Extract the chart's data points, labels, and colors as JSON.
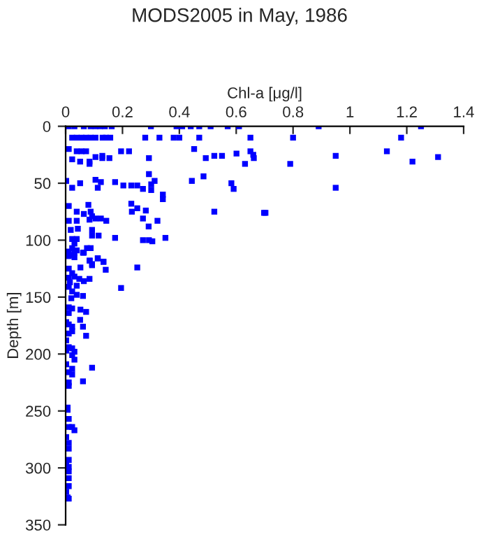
{
  "chart_data": {
    "type": "scatter",
    "title": "MODS2005 in May, 1986",
    "xlabel": "Chl-a [μg/l]",
    "ylabel": "Depth [m]",
    "xlim": [
      0,
      1.4
    ],
    "xticks": [
      0,
      0.2,
      0.4,
      0.6,
      0.8,
      1,
      1.2,
      1.4
    ],
    "ylim": [
      350,
      0
    ],
    "yticks": [
      0,
      50,
      100,
      150,
      200,
      250,
      300,
      350
    ],
    "grid": false,
    "legend": false,
    "marker": "square",
    "series": [
      {
        "color": "#0000ff",
        "x": [
          0.011,
          0.031,
          0.064,
          0.088,
          0.105,
          0.121,
          0.138,
          0.162,
          0.3,
          0.39,
          0.41,
          0.44,
          0.47,
          0.51,
          0.57,
          0.61,
          0.89,
          1.25,
          0.023,
          0.039,
          0.056,
          0.072,
          0.088,
          0.105,
          0.13,
          0.142,
          0.157,
          0.28,
          0.33,
          0.38,
          0.4,
          0.47,
          0.65,
          0.8,
          1.18,
          0.011,
          0.039,
          0.056,
          0.072,
          0.195,
          0.223,
          0.452,
          0.65,
          1.13,
          0.66,
          0.95,
          1.31,
          1.22,
          0.79,
          0.023,
          0.051,
          0.084,
          0.084,
          0.105,
          0.129,
          0.129,
          0.154,
          0.293,
          0.493,
          0.523,
          0.55,
          0.631,
          0.662,
          0.601,
          0.293,
          0.313,
          0.485,
          0.444,
          0.583,
          0.591,
          0.95,
          0.703,
          0.002,
          0.023,
          0.051,
          0.105,
          0.113,
          0.124,
          0.174,
          0.203,
          0.231,
          0.252,
          0.272,
          0.301,
          0.301,
          0.342,
          0.342,
          0.011,
          0.08,
          0.039,
          0.064,
          0.088,
          0.093,
          0.084,
          0.105,
          0.124,
          0.143,
          0.231,
          0.252,
          0.233,
          0.282,
          0.272,
          0.323,
          0.292,
          0.523,
          0.698,
          0.011,
          0.039,
          0.018,
          0.043,
          0.093,
          0.093,
          0.116,
          0.174,
          0.272,
          0.293,
          0.305,
          0.351,
          0.023,
          0.039,
          0.031,
          0.023,
          0.011,
          0.039,
          0.064,
          0.075,
          0.088,
          0.031,
          0.011,
          0.085,
          0.113,
          0.133,
          0.093,
          0.015,
          0.031,
          0.061,
          0.084,
          0.113,
          0.133,
          0.093,
          0.011,
          0.052,
          0.141,
          0.252,
          0.023,
          0.011,
          0.031,
          0.048,
          0.064,
          0.084,
          0.015,
          0.039,
          0.011,
          0.195,
          0.023,
          0.039,
          0.061,
          0.02,
          0.011,
          0.023,
          0.052,
          0.072,
          0.011,
          0.002,
          0.051,
          0.011,
          0.023,
          0.061,
          0.023,
          0.011,
          0.072,
          0.002,
          0.011,
          0.023,
          0.002,
          0.031,
          0.023,
          0.031,
          0.002,
          0.023,
          0.093,
          0.011,
          0.023,
          0.011,
          0.061,
          0.011,
          0.007,
          0.007,
          0.011,
          0.011,
          0.023,
          0.031,
          0.002,
          0.011,
          0.011,
          0.011,
          0.002,
          0.011,
          0.011,
          0.011,
          0.011,
          0.002,
          0.007,
          0.011
        ],
        "values": [
          0,
          0,
          0,
          0,
          0,
          0,
          0,
          0,
          0,
          0,
          0,
          0,
          0,
          0,
          0,
          0,
          0,
          0,
          10,
          10,
          10,
          10,
          10,
          10,
          10,
          10,
          10,
          10,
          10,
          10,
          10,
          10,
          10,
          10,
          10,
          20,
          22,
          22,
          22,
          22,
          22,
          20,
          22,
          22,
          25,
          26,
          27,
          31,
          33,
          29,
          31,
          31,
          33,
          27,
          26,
          28,
          28,
          28,
          28,
          26,
          26,
          33,
          28,
          24,
          42,
          48,
          44,
          48,
          50,
          55,
          54,
          76,
          48,
          54,
          50,
          47,
          54,
          49,
          49,
          52,
          52,
          52,
          55,
          51,
          56,
          60,
          64,
          70,
          69,
          75,
          77,
          75,
          79,
          82,
          81,
          81,
          83,
          68,
          72,
          75,
          74,
          81,
          83,
          88,
          75,
          76,
          83,
          83,
          91,
          90,
          91,
          96,
          96,
          98,
          100,
          100,
          101,
          98,
          99,
          99,
          103,
          107,
          110,
          109,
          111,
          107,
          107,
          115,
          114,
          118,
          116,
          119,
          121,
          113,
          111,
          111,
          118,
          116,
          119,
          122,
          125,
          124,
          126,
          124,
          129,
          133,
          132,
          134,
          136,
          134,
          137,
          140,
          141,
          142,
          145,
          148,
          149,
          151,
          159,
          160,
          161,
          163,
          164,
          172,
          170,
          174,
          176,
          176,
          180,
          182,
          184,
          188,
          194,
          195,
          197,
          198,
          201,
          205,
          209,
          213,
          212,
          216,
          218,
          225,
          224,
          228,
          247,
          249,
          257,
          264,
          264,
          267,
          273,
          278,
          283,
          293,
          296,
          299,
          303,
          309,
          316,
          321,
          326,
          327
        ]
      }
    ]
  }
}
